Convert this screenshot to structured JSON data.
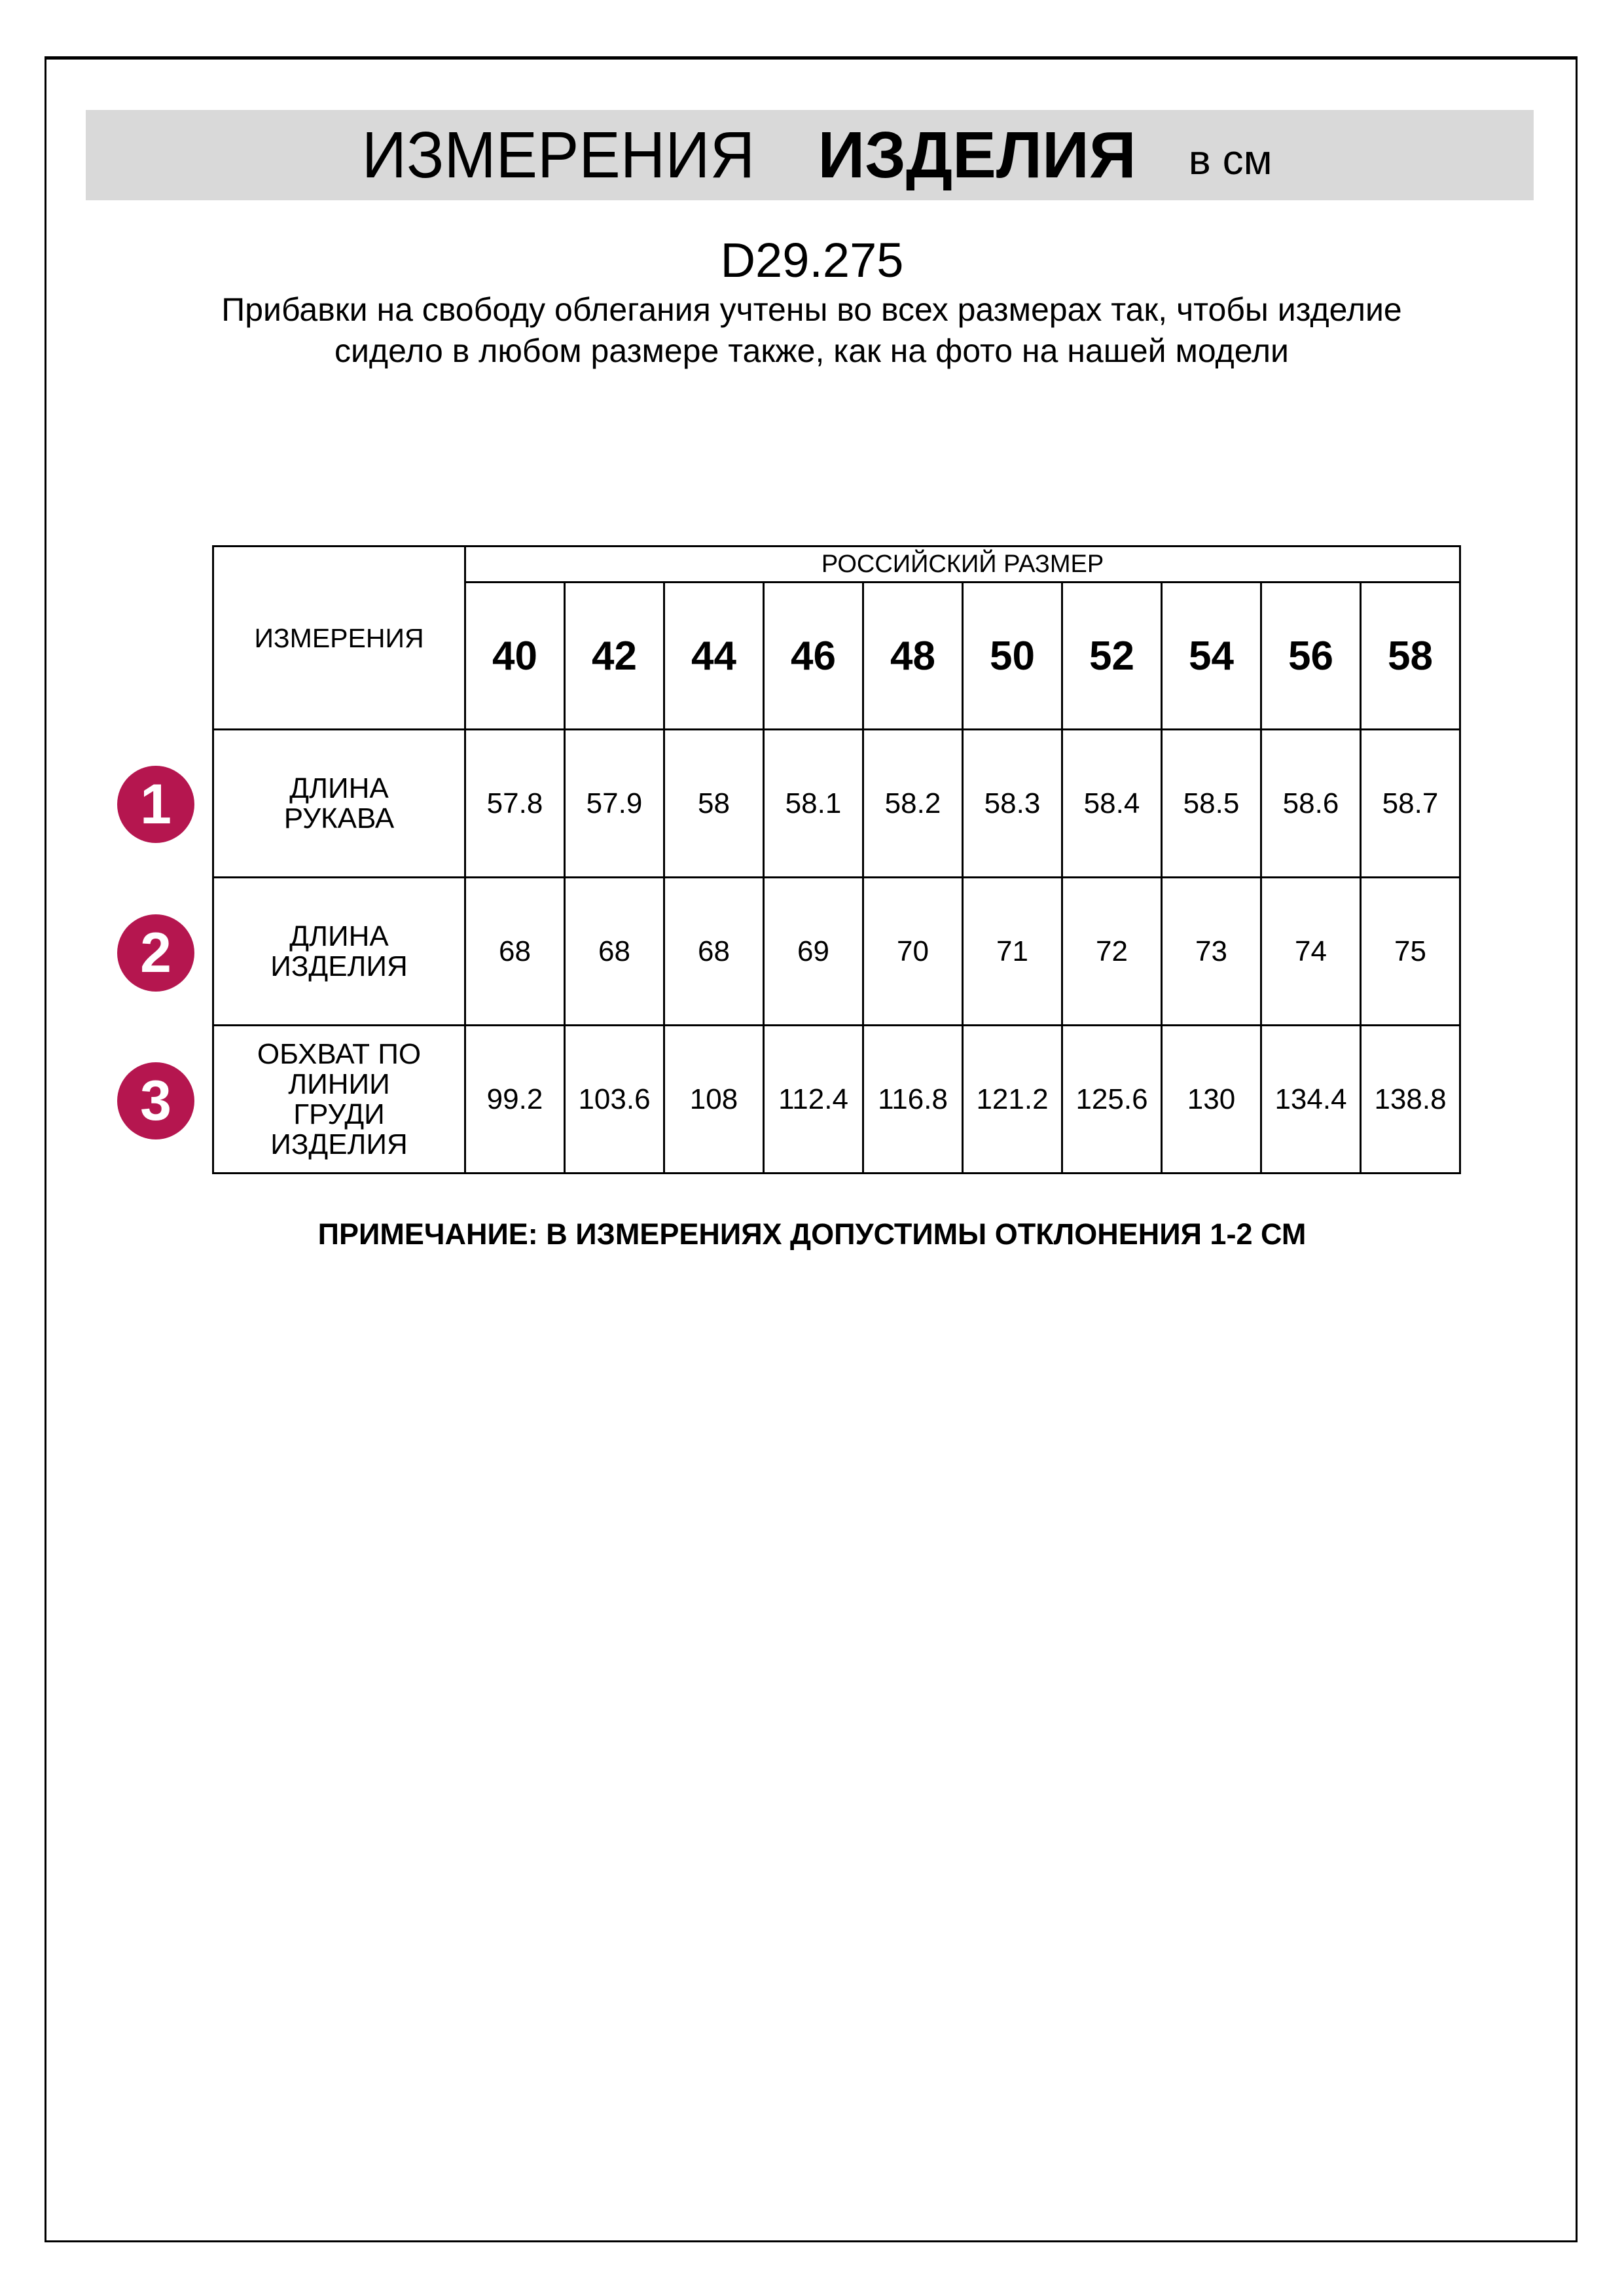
{
  "header": {
    "title_regular": "ИЗМЕРЕНИЯ",
    "title_bold": "ИЗДЕЛИЯ",
    "unit": "в см"
  },
  "product_code": "D29.275",
  "description": "Прибавки на свободу облегания учтены во всех размерах так, чтобы изделие сидело в любом размере также, как на фото на нашей модели",
  "table": {
    "measure_header": "ИЗМЕРЕНИЯ",
    "size_group_header": "РОССИЙСКИЙ РАЗМЕР",
    "sizes": [
      "40",
      "42",
      "44",
      "46",
      "48",
      "50",
      "52",
      "54",
      "56",
      "58"
    ],
    "rows": [
      {
        "badge": "1",
        "label": "ДЛИНА РУКАВА",
        "values": [
          "57.8",
          "57.9",
          "58",
          "58.1",
          "58.2",
          "58.3",
          "58.4",
          "58.5",
          "58.6",
          "58.7"
        ]
      },
      {
        "badge": "2",
        "label": "ДЛИНА ИЗДЕЛИЯ",
        "values": [
          "68",
          "68",
          "68",
          "69",
          "70",
          "71",
          "72",
          "73",
          "74",
          "75"
        ]
      },
      {
        "badge": "3",
        "label": "ОБХВАТ ПО ЛИНИИ ГРУДИ ИЗДЕЛИЯ",
        "values": [
          "99.2",
          "103.6",
          "108",
          "112.4",
          "116.8",
          "121.2",
          "125.6",
          "130",
          "134.4",
          "138.8"
        ]
      }
    ]
  },
  "note": "ПРИМЕЧАНИЕ: В ИЗМЕРЕНИЯХ ДОПУСТИМЫ ОТКЛОНЕНИЯ 1-2 СМ",
  "colors": {
    "badge": "#b5164f",
    "title_band": "#d9d9d9"
  }
}
